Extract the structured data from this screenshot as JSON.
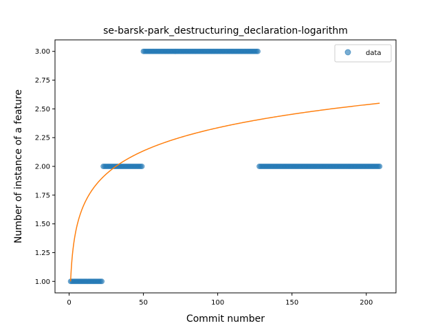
{
  "chart_data": {
    "type": "scatter",
    "title": "se-barsk-park_destructuring_declaration-logarithm",
    "xlabel": "Commit number",
    "ylabel": "Number of instance of a feature",
    "xlim": [
      -9.5,
      220
    ],
    "ylim": [
      0.9,
      3.1
    ],
    "xticks": [
      0,
      50,
      100,
      150,
      200
    ],
    "yticks": [
      1.0,
      1.25,
      1.5,
      1.75,
      2.0,
      2.25,
      2.5,
      2.75,
      3.0
    ],
    "ytick_labels": [
      "1.00",
      "1.25",
      "1.50",
      "1.75",
      "2.00",
      "2.25",
      "2.50",
      "2.75",
      "3.00"
    ],
    "legend": {
      "position": "top-right",
      "entries": [
        "data"
      ]
    },
    "series": [
      {
        "name": "data",
        "kind": "points",
        "color": "#1f77b4",
        "segments": [
          {
            "x_from": 1,
            "x_to": 22,
            "y": 1
          },
          {
            "x_from": 23,
            "x_to": 49,
            "y": 2
          },
          {
            "x_from": 50,
            "x_to": 127,
            "y": 3
          },
          {
            "x_from": 128,
            "x_to": 209,
            "y": 2
          }
        ]
      },
      {
        "kind": "line",
        "color": "#ff7f0e",
        "function": "a + b*ln(x)",
        "a": 1.0,
        "b": 0.29,
        "x_range": [
          1,
          209
        ]
      }
    ]
  }
}
